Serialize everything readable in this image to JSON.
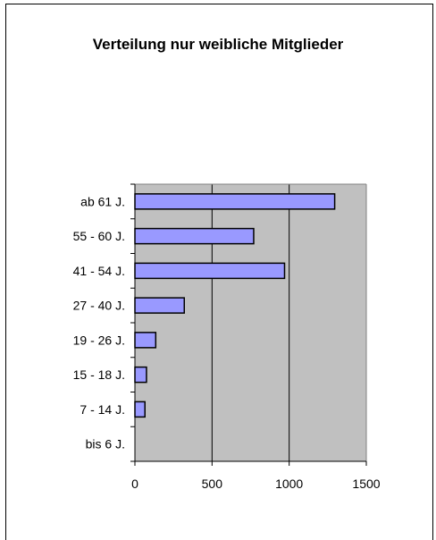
{
  "chart_data": {
    "type": "bar",
    "orientation": "horizontal",
    "title": "Verteilung nur weibliche Mitglieder",
    "categories": [
      "bis 6 J.",
      "7 - 14 J.",
      "15 - 18 J.",
      "19 - 26 J.",
      "27 - 40 J.",
      "41 - 54 J.",
      "55 - 60 J.",
      "ab 61 J."
    ],
    "values": [
      0,
      65,
      75,
      135,
      320,
      970,
      770,
      1295
    ],
    "xticks": [
      "0",
      "500",
      "1000",
      "1500"
    ],
    "xlim": [
      0,
      1500
    ],
    "grid": "vertical",
    "legend": "none",
    "colors": {
      "bar": "#9999ff",
      "plot_bg": "#c0c0c0",
      "bar_stroke": "#000000"
    }
  }
}
